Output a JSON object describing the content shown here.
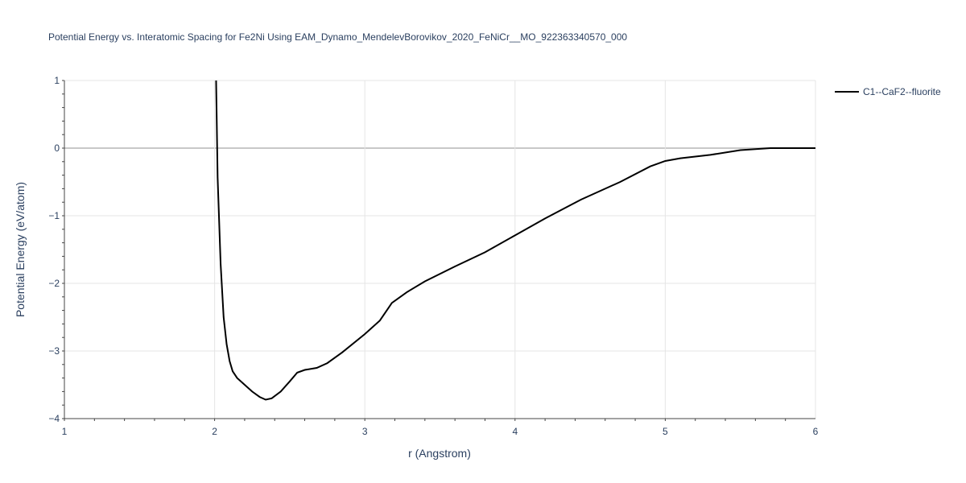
{
  "chart_data": {
    "type": "line",
    "title": "Potential Energy vs. Interatomic Spacing for Fe2Ni Using EAM_Dynamo_MendelevBorovikov_2020_FeNiCr__MO_922363340570_000",
    "x_label": "r (Angstrom)",
    "y_label": "Potential Energy (eV/atom)",
    "x": [
      2.01,
      2.02,
      2.04,
      2.06,
      2.08,
      2.1,
      2.12,
      2.15,
      2.2,
      2.25,
      2.3,
      2.34,
      2.38,
      2.44,
      2.5,
      2.55,
      2.6,
      2.68,
      2.75,
      2.85,
      3.0,
      3.1,
      3.18,
      3.28,
      3.4,
      3.6,
      3.8,
      4.0,
      4.2,
      4.44,
      4.7,
      4.9,
      5.0,
      5.1,
      5.3,
      5.5,
      5.7,
      6.0
    ],
    "series": [
      {
        "name": "C1--CaF2--fluorite",
        "color": "#000000",
        "values": [
          1.0,
          -0.43,
          -1.71,
          -2.5,
          -2.9,
          -3.15,
          -3.3,
          -3.4,
          -3.5,
          -3.6,
          -3.68,
          -3.72,
          -3.7,
          -3.6,
          -3.45,
          -3.32,
          -3.28,
          -3.25,
          -3.18,
          -3.02,
          -2.75,
          -2.55,
          -2.29,
          -2.13,
          -1.97,
          -1.75,
          -1.54,
          -1.29,
          -1.04,
          -0.76,
          -0.5,
          -0.27,
          -0.19,
          -0.15,
          -0.1,
          -0.03,
          0,
          0
        ]
      }
    ],
    "xlim": [
      1,
      6
    ],
    "xticks": [
      1,
      2,
      3,
      4,
      5,
      6
    ],
    "ylim": [
      -4,
      1
    ],
    "yticks": [
      {
        "value": -4,
        "label": "−4"
      },
      {
        "value": -3,
        "label": "−3"
      },
      {
        "value": -2,
        "label": "−2"
      },
      {
        "value": -1,
        "label": "−1"
      },
      0,
      1
    ],
    "grid": true,
    "legend": "right"
  }
}
